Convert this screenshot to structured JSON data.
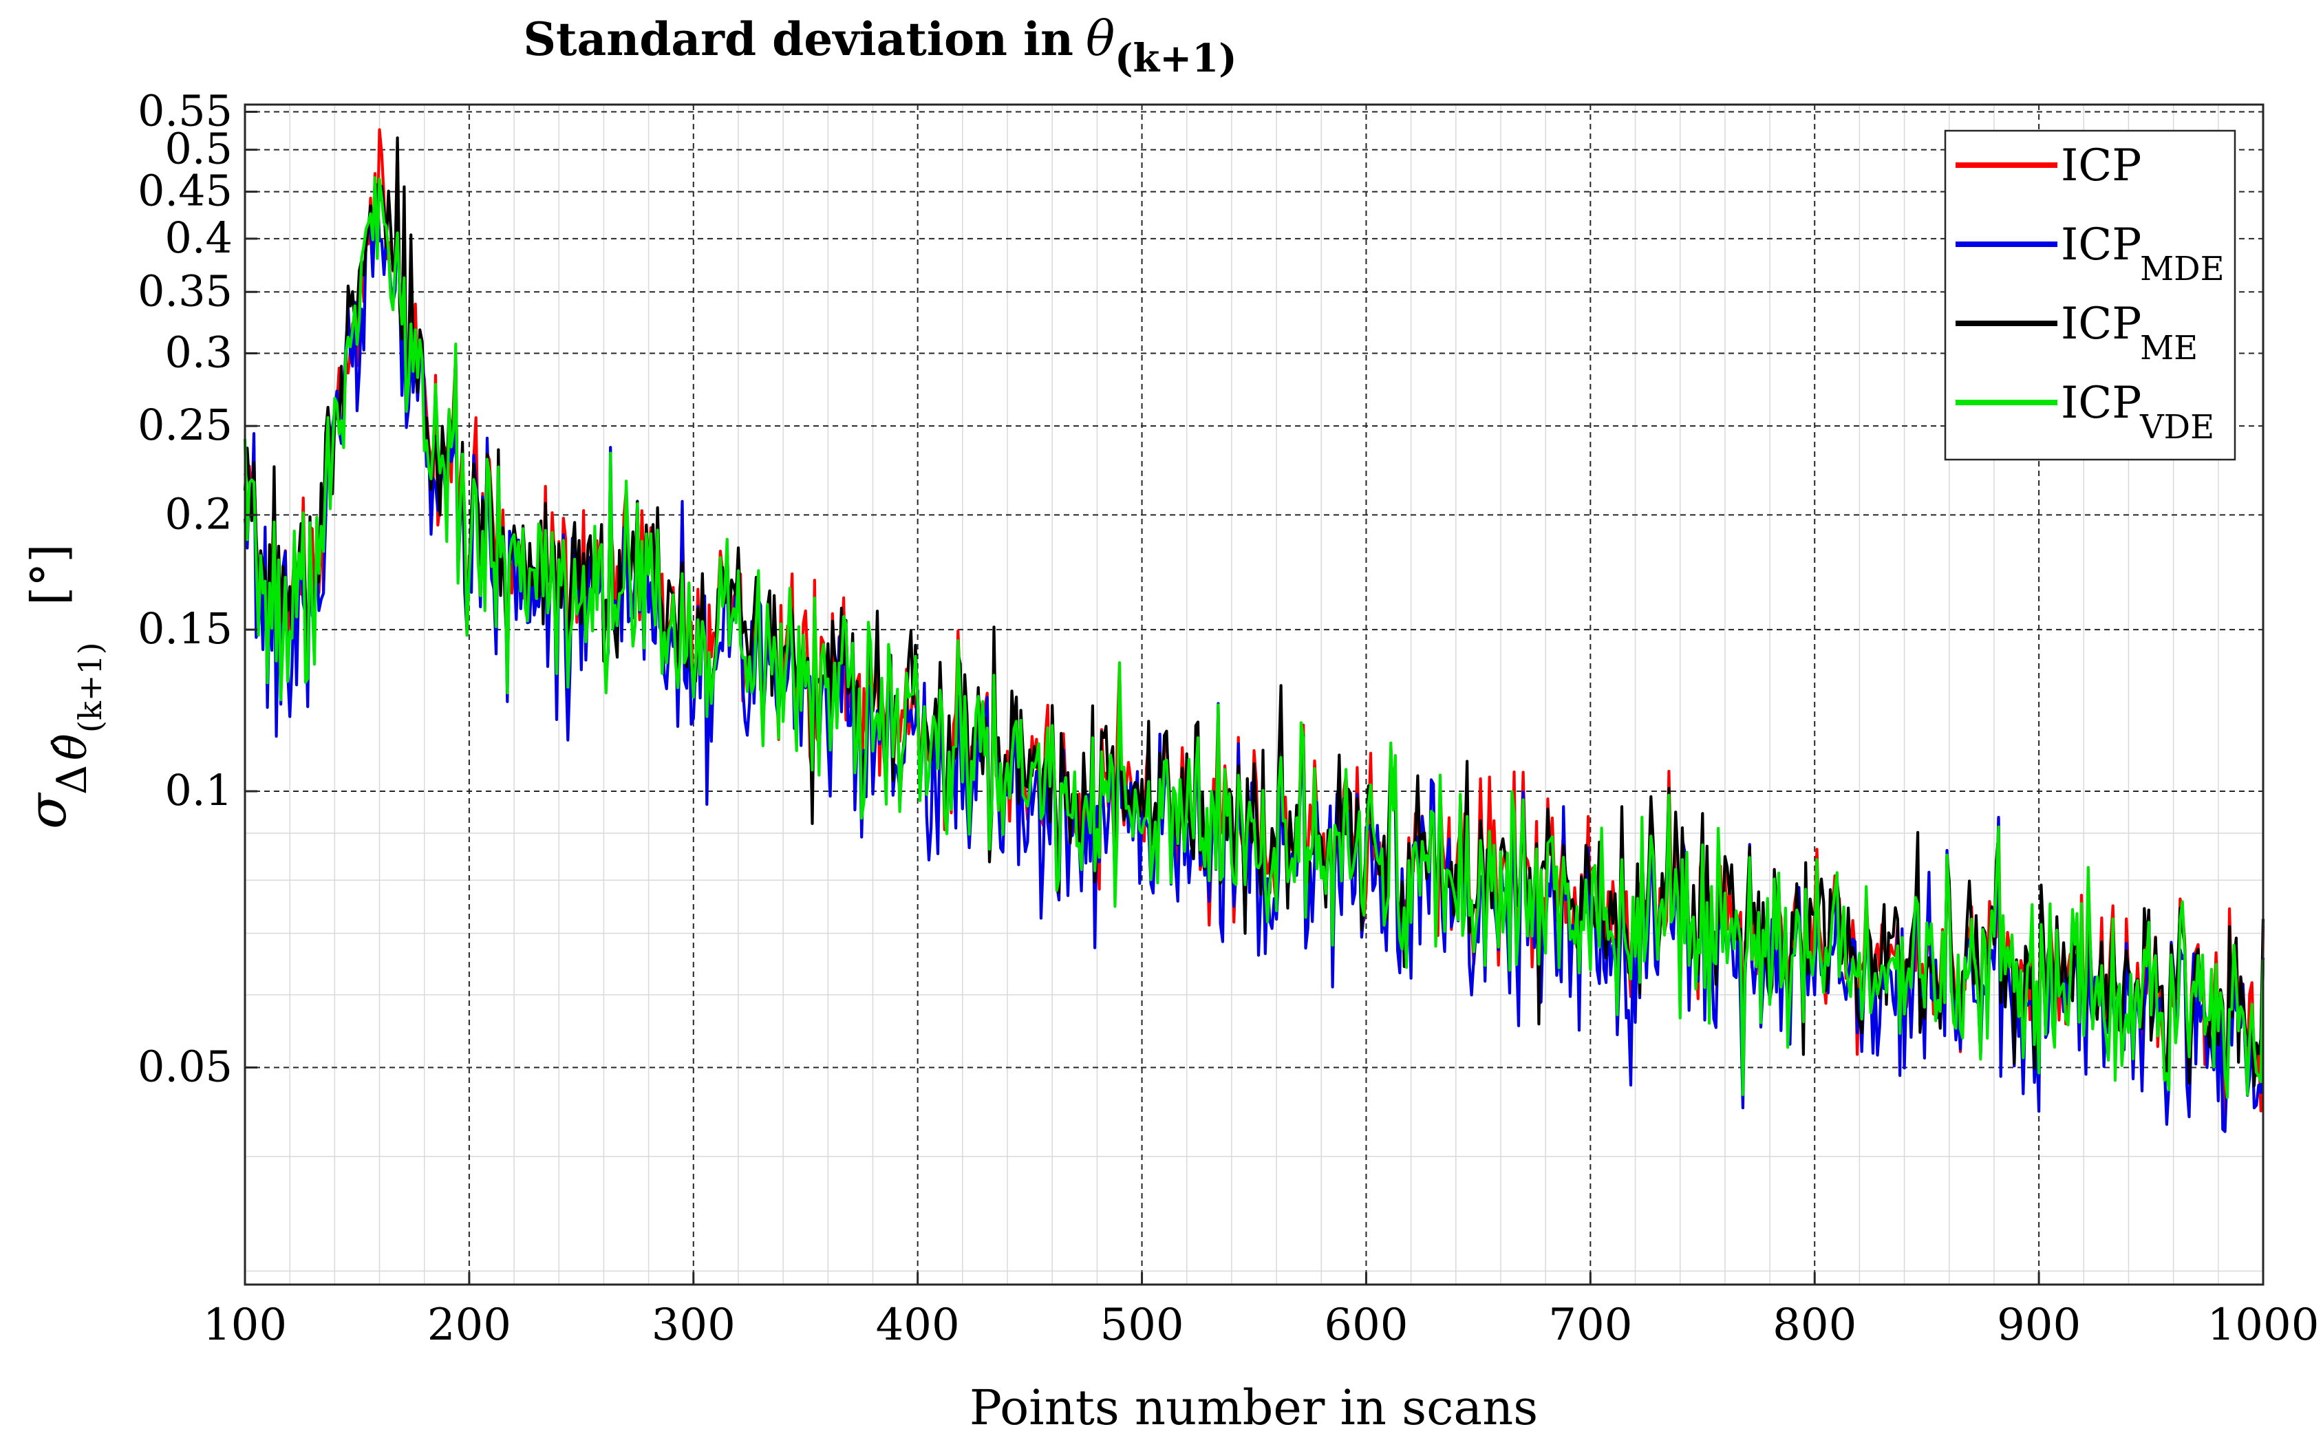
{
  "chart_data": {
    "type": "line",
    "title": "Standard deviation in",
    "title_symbol": "θ",
    "title_subscript": "(k+1)",
    "xlabel": "Points number in scans",
    "ylabel_symbol": "σ",
    "ylabel_delta": "Δ",
    "ylabel_theta": "θ̂",
    "ylabel_subscript": "(k+1)",
    "ylabel_unit": "[°]",
    "xlim": [
      100,
      1000
    ],
    "ylim": [
      0.029,
      0.56
    ],
    "yscale": "log",
    "grid": true,
    "legend_position": "top-right",
    "xticks": [
      100,
      200,
      300,
      400,
      500,
      600,
      700,
      800,
      900,
      1000
    ],
    "xtick_labels": [
      "100",
      "200",
      "300",
      "400",
      "500",
      "600",
      "700",
      "800",
      "900",
      "1000"
    ],
    "yticks": [
      0.05,
      0.1,
      0.15,
      0.2,
      0.25,
      0.3,
      0.35,
      0.4,
      0.45,
      0.5,
      0.55
    ],
    "ytick_labels": [
      "0.05",
      "0.1",
      "0.15",
      "0.2",
      "0.25",
      "0.3",
      "0.35",
      "0.4",
      "0.45",
      "0.5",
      "0.55"
    ],
    "envelope": {
      "x": [
        100,
        110,
        120,
        130,
        140,
        150,
        160,
        170,
        180,
        200,
        220,
        250,
        280,
        300,
        330,
        350,
        400,
        450,
        500,
        550,
        600,
        650,
        700,
        750,
        800,
        850,
        900,
        950,
        1000
      ],
      "y": [
        0.195,
        0.17,
        0.16,
        0.175,
        0.24,
        0.36,
        0.42,
        0.36,
        0.26,
        0.195,
        0.18,
        0.175,
        0.17,
        0.155,
        0.14,
        0.135,
        0.115,
        0.105,
        0.096,
        0.09,
        0.086,
        0.082,
        0.078,
        0.074,
        0.07,
        0.067,
        0.064,
        0.061,
        0.058
      ]
    },
    "series": [
      {
        "name": "ICP",
        "legend_base": "ICP",
        "legend_sub": "",
        "color": "#ff0000",
        "offset": 1.0,
        "noise": 0.13,
        "seed": 11
      },
      {
        "name": "ICP_MDE",
        "legend_base": "ICP",
        "legend_sub": "MDE",
        "color": "#0000e6",
        "offset": 0.93,
        "noise": 0.15,
        "seed": 23
      },
      {
        "name": "ICP_ME",
        "legend_base": "ICP",
        "legend_sub": "ME",
        "color": "#000000",
        "offset": 1.01,
        "noise": 0.13,
        "seed": 37
      },
      {
        "name": "ICP_VDE",
        "legend_base": "ICP",
        "legend_sub": "VDE",
        "color": "#00e600",
        "offset": 0.975,
        "noise": 0.14,
        "seed": 53
      }
    ]
  }
}
